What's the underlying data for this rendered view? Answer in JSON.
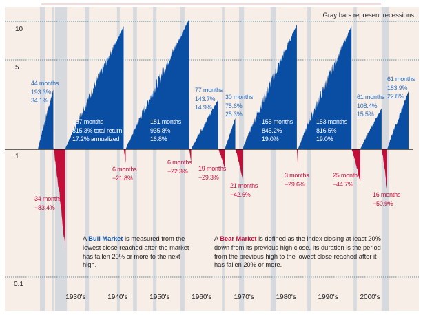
{
  "chart_data": {
    "type": "area",
    "title": "",
    "note": "Gray bars represent recessions",
    "y_scale": "log",
    "ylim": [
      0.1,
      10
    ],
    "y_ticks": [
      "10",
      "5",
      "1",
      "0.1"
    ],
    "y_tick_values": [
      10,
      5,
      1,
      0.1
    ],
    "x_unit": "months since start of chart",
    "x_range": [
      0,
      1059
    ],
    "decades": [
      {
        "label": "1930's",
        "month": 108
      },
      {
        "label": "1940's",
        "month": 228
      },
      {
        "label": "1950's",
        "month": 348
      },
      {
        "label": "1960's",
        "month": 468
      },
      {
        "label": "1970's",
        "month": 589
      },
      {
        "label": "1980's",
        "month": 709
      },
      {
        "label": "1990's",
        "month": 829
      },
      {
        "label": "2000's",
        "month": 949
      }
    ],
    "recessions": [
      [
        6,
        20
      ],
      [
        41,
        45
      ],
      [
        49,
        83
      ],
      [
        134,
        146
      ],
      [
        226,
        234
      ],
      [
        272,
        283
      ],
      [
        329,
        339
      ],
      [
        407,
        419
      ],
      [
        526,
        533
      ],
      [
        575,
        589
      ],
      [
        665,
        681
      ],
      [
        770,
        780
      ],
      [
        902,
        911
      ],
      [
        982,
        1002
      ]
    ],
    "markets": [
      {
        "type": "bull",
        "months": 44,
        "return_pct": 193.3,
        "lines": [
          "44 months",
          "193.3%",
          "34.1%"
        ]
      },
      {
        "type": "bear",
        "months": 34,
        "return_pct": -83.4,
        "lines": [
          "34 months",
          "−83.4%"
        ]
      },
      {
        "type": "bull",
        "months": 167,
        "return_pct": 815.3,
        "lines": [
          "167 months",
          "815.3% total return",
          "17.2% annualized"
        ]
      },
      {
        "type": "bear",
        "months": 6,
        "return_pct": -21.8,
        "lines": [
          "6 months",
          "−21.8%"
        ]
      },
      {
        "type": "bull",
        "months": 181,
        "return_pct": 935.8,
        "lines": [
          "181 months",
          "935.8%",
          "16.8%"
        ]
      },
      {
        "type": "bear",
        "months": 6,
        "return_pct": -22.3,
        "lines": [
          "6 months",
          "−22.3%"
        ]
      },
      {
        "type": "bull",
        "months": 77,
        "return_pct": 143.7,
        "lines": [
          "77 months",
          "143.7%",
          "14.9%"
        ]
      },
      {
        "type": "bear",
        "months": 19,
        "return_pct": -29.3,
        "lines": [
          "19 months",
          "−29.3%"
        ]
      },
      {
        "type": "bull",
        "months": 30,
        "return_pct": 75.6,
        "lines": [
          "30 months",
          "75.6%",
          "25.3%"
        ]
      },
      {
        "type": "bear",
        "months": 21,
        "return_pct": -42.6,
        "lines": [
          "21 months",
          "−42.6%"
        ]
      },
      {
        "type": "bull",
        "months": 155,
        "return_pct": 845.2,
        "lines": [
          "155 months",
          "845.2%",
          "19.0%"
        ]
      },
      {
        "type": "bear",
        "months": 3,
        "return_pct": -29.6,
        "lines": [
          "3 months",
          "−29.6%"
        ]
      },
      {
        "type": "bull",
        "months": 153,
        "return_pct": 816.5,
        "lines": [
          "153 months",
          "816.5%",
          "19.0%"
        ]
      },
      {
        "type": "bear",
        "months": 25,
        "return_pct": -44.7,
        "lines": [
          "25 months",
          "−44.7%"
        ]
      },
      {
        "type": "bull",
        "months": 61,
        "return_pct": 108.4,
        "lines": [
          "61 months",
          "108.4%",
          "15.5%"
        ]
      },
      {
        "type": "bear",
        "months": 16,
        "return_pct": -50.9,
        "lines": [
          "16 months",
          "−50.9%"
        ]
      },
      {
        "type": "bull",
        "months": 61,
        "return_pct": 183.9,
        "lines": [
          "61 months",
          "183.9%",
          "22.8%"
        ]
      }
    ],
    "definitions": {
      "bull_prefix": "A ",
      "bull_term": "Bull Market",
      "bull_text": " is measured from the lowest close reached after the market has fallen 20% or more to the next high.",
      "bear_prefix": "A ",
      "bear_term": "Bear Market",
      "bear_text": " is defined as the index closing at least 20% down from its previous high close. Its duration is the period from the previous high to the lowest close reached after it has fallen 20% or more."
    },
    "colors": {
      "background": "#f8eee8",
      "bull": "#0a4ea3",
      "bear": "#c20f3a",
      "recession": "#d6d9de",
      "grid": "#5e8f9c",
      "title_rule": "#e8b4b4"
    }
  }
}
